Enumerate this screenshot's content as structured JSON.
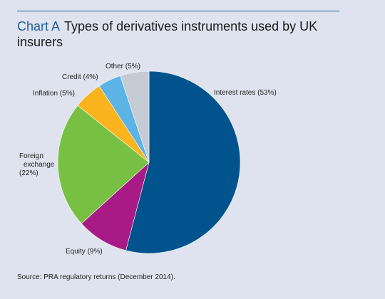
{
  "header": {
    "chart_id": "Chart A",
    "title": "Types of derivatives instruments used by UK insurers"
  },
  "chart_data": {
    "type": "pie",
    "title": "Types of derivatives instruments used by UK insurers",
    "slices": [
      {
        "label": "Interest rates (53%)",
        "value": 53,
        "color": "#00538c"
      },
      {
        "label": "Equity (9%)",
        "value": 9,
        "color": "#a81a86"
      },
      {
        "label": "Foreign exchange (22%)",
        "label_lines": [
          "Foreign",
          "exchange",
          "(22%)"
        ],
        "value": 22,
        "color": "#78c043"
      },
      {
        "label": "Inflation (5%)",
        "value": 5,
        "color": "#fbb41e"
      },
      {
        "label": "Credit (4%)",
        "value": 4,
        "color": "#5bb3e6"
      },
      {
        "label": "Other (5%)",
        "value": 5,
        "color": "#c4cbd4"
      }
    ],
    "start": "12 o'clock",
    "direction": "clockwise"
  },
  "footer": {
    "source": "Source:  PRA regulatory returns (December 2014)."
  }
}
